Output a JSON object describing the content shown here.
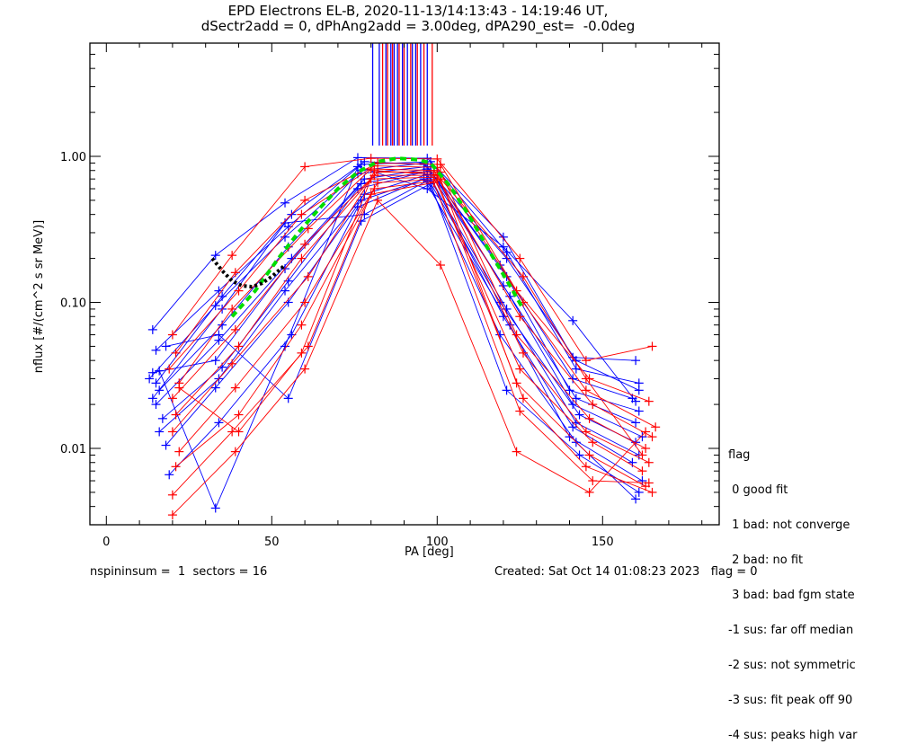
{
  "title": {
    "line1": "EPD Electrons EL-B, 2020-11-13/14:13:43 - 14:19:46 UT,",
    "line2": "dSectr2add = 0, dPhAng2add = 3.00deg, dPA290_est=  -0.0deg"
  },
  "footer": {
    "left": "nspininsum =  1  sectors = 16",
    "right": "Created: Sat Oct 14 01:08:23 2023   flag = 0"
  },
  "legend": {
    "title": "flag",
    "items": [
      " 0 good fit",
      " 1 bad: not converge",
      " 2 bad: no fit",
      " 3 bad: bad fgm state",
      "-1 sus: far off median",
      "-2 sus: not symmetric",
      "-3 sus: fit peak off 90",
      "-4 sus: peaks high var"
    ]
  },
  "colors": {
    "series_a": "#0000ff",
    "series_b": "#ff0000",
    "fit": "#00dd00",
    "loss_cone": "#000000",
    "axes": "#000000"
  },
  "chart_data": {
    "type": "line",
    "title": "EPD Electrons EL-B, 2020-11-13/14:13:43 - 14:19:46 UT, dSectr2add = 0, dPhAng2add = 3.00deg, dPA290_est=  -0.0deg",
    "xlabel": "PA [deg]",
    "ylabel": "nflux [#/(cm^2 s sr MeV)]",
    "xlim": [
      -5,
      185
    ],
    "ylim": [
      0.003,
      6.0
    ],
    "yscale": "log",
    "xticks": [
      0,
      50,
      100,
      150
    ],
    "xtick_labels": [
      "0",
      "50",
      "100",
      "150"
    ],
    "yticks": [
      0.01,
      0.1,
      1.0
    ],
    "ytick_labels": [
      "0.01",
      "0.10",
      "1.00"
    ],
    "grid": false,
    "legend_position": "outside-right-bottom",
    "vertical_lines": {
      "blue": [
        80.5,
        82.5,
        84.5,
        86,
        87,
        88,
        89.5,
        91,
        92.5,
        93.5,
        95,
        97
      ],
      "red": [
        83.5,
        85,
        86.5,
        88.5,
        90,
        92,
        94,
        96,
        98.5
      ]
    },
    "fit_curve": {
      "name": "fit",
      "x": [
        38,
        45,
        52,
        58,
        64,
        70,
        76,
        82,
        88,
        94,
        98,
        104,
        110,
        116,
        122,
        126
      ],
      "y": [
        0.08,
        0.12,
        0.2,
        0.3,
        0.43,
        0.6,
        0.78,
        0.92,
        0.97,
        0.95,
        0.9,
        0.62,
        0.38,
        0.22,
        0.13,
        0.09
      ]
    },
    "loss_cone_curve": {
      "name": "black-dotted",
      "x": [
        32,
        35,
        38,
        41,
        44,
        47,
        50,
        54
      ],
      "y": [
        0.2,
        0.165,
        0.14,
        0.13,
        0.128,
        0.135,
        0.15,
        0.18
      ]
    },
    "series": [
      {
        "name": "blue-1",
        "color": "blue",
        "x": [
          14,
          33,
          54,
          76,
          97,
          120,
          141,
          160
        ],
        "y": [
          0.065,
          0.21,
          0.48,
          0.98,
          0.97,
          0.28,
          0.042,
          0.04
        ]
      },
      {
        "name": "blue-2",
        "x": [
          15,
          34,
          55,
          77,
          98,
          121,
          142,
          161
        ],
        "color": "blue",
        "y": [
          0.047,
          0.12,
          0.33,
          0.88,
          0.92,
          0.22,
          0.035,
          0.028
        ]
      },
      {
        "name": "blue-3",
        "x": [
          13,
          33,
          54,
          77,
          96,
          119,
          141,
          159
        ],
        "color": "blue",
        "y": [
          0.03,
          0.095,
          0.28,
          0.8,
          0.9,
          0.18,
          0.03,
          0.022
        ]
      },
      {
        "name": "blue-4",
        "x": [
          16,
          35,
          55,
          76,
          97,
          121,
          140,
          161
        ],
        "color": "blue",
        "y": [
          0.025,
          0.07,
          0.24,
          0.76,
          0.85,
          0.15,
          0.025,
          0.018
        ]
      },
      {
        "name": "blue-5",
        "x": [
          15,
          34,
          56,
          78,
          97,
          120,
          142,
          160
        ],
        "color": "blue",
        "y": [
          0.02,
          0.055,
          0.2,
          0.7,
          0.82,
          0.13,
          0.022,
          0.015
        ]
      },
      {
        "name": "blue-6",
        "x": [
          14,
          33,
          54,
          77,
          98,
          122,
          141,
          162
        ],
        "color": "blue",
        "y": [
          0.033,
          0.04,
          0.17,
          0.65,
          0.8,
          0.11,
          0.02,
          0.012
        ]
      },
      {
        "name": "blue-7",
        "x": [
          17,
          35,
          55,
          76,
          96,
          119,
          143,
          160
        ],
        "color": "blue",
        "y": [
          0.016,
          0.036,
          0.14,
          0.6,
          0.78,
          0.1,
          0.017,
          0.011
        ]
      },
      {
        "name": "blue-8",
        "x": [
          16,
          34,
          54,
          78,
          97,
          121,
          142,
          161
        ],
        "color": "blue",
        "y": [
          0.013,
          0.03,
          0.12,
          0.55,
          0.75,
          0.09,
          0.015,
          0.009
        ]
      },
      {
        "name": "blue-9",
        "x": [
          18,
          33,
          55,
          77,
          98,
          120,
          141,
          159
        ],
        "color": "blue",
        "y": [
          0.0105,
          0.026,
          0.1,
          0.5,
          0.72,
          0.08,
          0.014,
          0.008
        ]
      },
      {
        "name": "blue-10",
        "x": [
          19,
          34,
          56,
          76,
          96,
          122,
          140,
          162
        ],
        "color": "blue",
        "y": [
          0.0066,
          0.015,
          0.06,
          0.45,
          0.7,
          0.07,
          0.012,
          0.006
        ]
      },
      {
        "name": "blue-11",
        "x": [
          14,
          35,
          54,
          78,
          97,
          119,
          142,
          160
        ],
        "color": "blue",
        "y": [
          0.022,
          0.09,
          0.35,
          0.4,
          0.68,
          0.06,
          0.011,
          0.0045
        ]
      },
      {
        "name": "blue-12",
        "x": [
          18,
          34,
          55,
          77,
          98,
          121,
          143,
          161
        ],
        "color": "blue",
        "y": [
          0.05,
          0.06,
          0.022,
          0.36,
          0.65,
          0.025,
          0.009,
          0.005
        ]
      },
      {
        "name": "blue-13",
        "x": [
          16,
          33,
          54,
          76,
          97,
          120,
          141,
          160
        ],
        "color": "blue",
        "y": [
          0.034,
          0.0039,
          0.05,
          0.85,
          0.6,
          0.24,
          0.075,
          0.021
        ]
      },
      {
        "name": "blue-14",
        "x": [
          15,
          35,
          56,
          78,
          96,
          121,
          142,
          161
        ],
        "color": "blue",
        "y": [
          0.028,
          0.11,
          0.4,
          0.92,
          0.88,
          0.2,
          0.04,
          0.025
        ]
      },
      {
        "name": "red-1",
        "color": "red",
        "x": [
          20,
          38,
          60,
          80,
          100,
          125,
          145,
          165
        ],
        "y": [
          0.06,
          0.21,
          0.85,
          0.97,
          0.96,
          0.2,
          0.04,
          0.05
        ]
      },
      {
        "name": "red-2",
        "color": "red",
        "x": [
          21,
          39,
          60,
          82,
          101,
          124,
          146,
          164
        ],
        "y": [
          0.045,
          0.16,
          0.5,
          0.9,
          0.88,
          0.12,
          0.03,
          0.021
        ]
      },
      {
        "name": "red-3",
        "color": "red",
        "x": [
          19,
          40,
          59,
          81,
          100,
          126,
          145,
          166
        ],
        "y": [
          0.035,
          0.12,
          0.4,
          0.86,
          0.84,
          0.1,
          0.025,
          0.014
        ]
      },
      {
        "name": "red-4",
        "color": "red",
        "x": [
          22,
          38,
          61,
          80,
          99,
          125,
          147,
          165
        ],
        "y": [
          0.028,
          0.09,
          0.32,
          0.82,
          0.8,
          0.08,
          0.02,
          0.012
        ]
      },
      {
        "name": "red-5",
        "color": "red",
        "x": [
          20,
          39,
          60,
          82,
          101,
          124,
          146,
          163
        ],
        "y": [
          0.022,
          0.065,
          0.25,
          0.78,
          0.78,
          0.06,
          0.016,
          0.01
        ]
      },
      {
        "name": "red-6",
        "color": "red",
        "x": [
          21,
          40,
          59,
          81,
          100,
          126,
          145,
          164
        ],
        "y": [
          0.017,
          0.05,
          0.2,
          0.74,
          0.74,
          0.045,
          0.013,
          0.008
        ]
      },
      {
        "name": "red-7",
        "color": "red",
        "x": [
          20,
          38,
          61,
          80,
          99,
          125,
          147,
          162
        ],
        "y": [
          0.013,
          0.038,
          0.15,
          0.7,
          0.72,
          0.035,
          0.011,
          0.007
        ]
      },
      {
        "name": "red-8",
        "color": "red",
        "x": [
          22,
          39,
          60,
          82,
          101,
          124,
          146,
          163
        ],
        "y": [
          0.0095,
          0.026,
          0.1,
          0.66,
          0.7,
          0.028,
          0.009,
          0.0055
        ]
      },
      {
        "name": "red-9",
        "color": "red",
        "x": [
          21,
          40,
          59,
          81,
          100,
          126,
          145,
          165
        ],
        "y": [
          0.0075,
          0.017,
          0.07,
          0.6,
          0.68,
          0.022,
          0.0075,
          0.005
        ]
      },
      {
        "name": "red-10",
        "color": "red",
        "x": [
          20,
          38,
          61,
          80,
          99,
          125,
          147,
          164
        ],
        "y": [
          0.0048,
          0.013,
          0.05,
          0.55,
          0.66,
          0.018,
          0.006,
          0.0058
        ]
      },
      {
        "name": "red-11",
        "color": "red",
        "x": [
          20,
          39,
          60,
          82,
          101,
          124,
          146,
          163
        ],
        "y": [
          0.0035,
          0.0095,
          0.035,
          0.5,
          0.18,
          0.0095,
          0.005,
          0.013
        ]
      },
      {
        "name": "red-12",
        "color": "red",
        "x": [
          22,
          40,
          59,
          81,
          100,
          126,
          145,
          162
        ],
        "y": [
          0.026,
          0.013,
          0.045,
          0.8,
          0.75,
          0.15,
          0.03,
          0.009
        ]
      }
    ]
  }
}
